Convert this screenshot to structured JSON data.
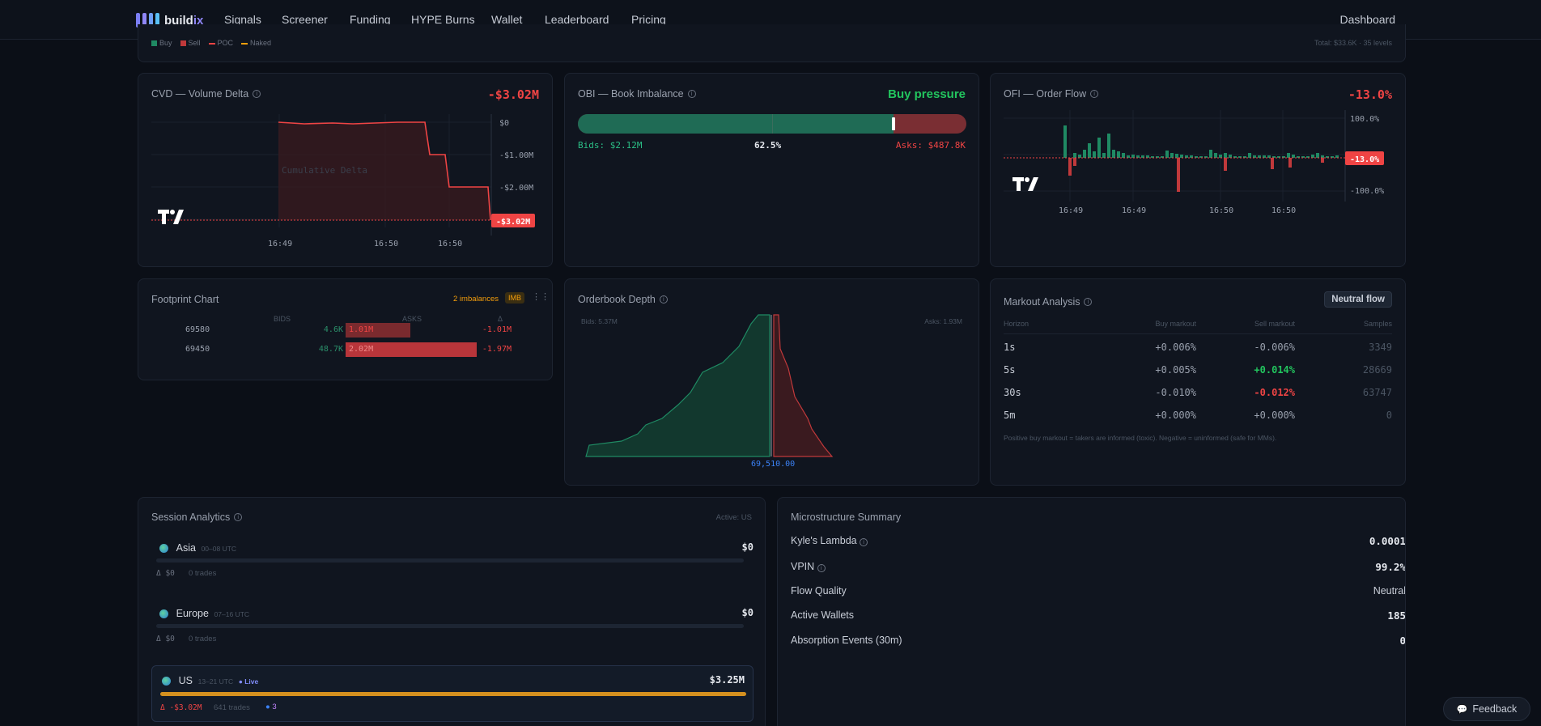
{
  "nav": {
    "logo_main": "build",
    "logo_accent": "ix",
    "items": [
      "Signals",
      "Screener",
      "Funding",
      "HYPE Burns",
      "Wallet",
      "Leaderboard",
      "Pricing"
    ],
    "dashboard": "Dashboard"
  },
  "top_strip": {
    "legend": [
      "Buy",
      "Sell",
      "POC",
      "Naked"
    ],
    "legend_colors": [
      "#1f8a63",
      "#c0393b",
      "#ef4444",
      "#f59e0b"
    ],
    "total": "Total: $33.6K · 35 levels"
  },
  "cvd": {
    "title": "CVD — Volume Delta",
    "value": "-$3.02M",
    "y_ticks": [
      "$0",
      "-$1.00M",
      "-$2.00M"
    ],
    "current": "-$3.02M",
    "x_ticks": [
      "16:49",
      "16:50",
      "16:50"
    ],
    "watermark": "Cumulative Delta"
  },
  "obi": {
    "title": "OBI — Book Imbalance",
    "status": "Buy pressure",
    "bids": "Bids: $2.12M",
    "pct": "62.5%",
    "asks": "Asks: $487.8K",
    "fill_fraction": 0.813
  },
  "ofi": {
    "title": "OFI — Order Flow",
    "value": "-13.0%",
    "y_ticks": [
      "100.0%",
      "-100.0%"
    ],
    "current": "-13.0%",
    "x_ticks": [
      "16:49",
      "16:49",
      "16:50",
      "16:50"
    ]
  },
  "footprint": {
    "title": "Footprint Chart",
    "imbalances": "2 imbalances",
    "imb_badge": "IMB",
    "headers": [
      "BIDS",
      "ASKS",
      "Δ"
    ],
    "rows": [
      {
        "price": "69580",
        "bid": "4.6K",
        "ask": "1.01M",
        "delta": "-1.01M"
      },
      {
        "price": "69450",
        "bid": "48.7K",
        "ask": "2.02M",
        "delta": "-1.97M"
      }
    ]
  },
  "depth": {
    "title": "Orderbook Depth",
    "bids_label": "Bids: 5.37M",
    "asks_label": "Asks: 1.93M",
    "mid": "69,510.00"
  },
  "markout": {
    "title": "Markout Analysis",
    "badge": "Neutral flow",
    "headers": [
      "Horizon",
      "Buy markout",
      "Sell markout",
      "Samples"
    ],
    "rows": [
      {
        "h": "1s",
        "buy": "+0.006%",
        "sell": "-0.006%",
        "n": "3349"
      },
      {
        "h": "5s",
        "buy": "+0.005%",
        "sell": "+0.014%",
        "n": "28669"
      },
      {
        "h": "30s",
        "buy": "-0.010%",
        "sell": "-0.012%",
        "n": "63747"
      },
      {
        "h": "5m",
        "buy": "+0.000%",
        "sell": "+0.000%",
        "n": "0"
      }
    ],
    "note": "Positive buy markout = takers are informed (toxic). Negative = uninformed (safe for MMs)."
  },
  "session": {
    "title": "Session Analytics",
    "active": "Active: US",
    "sessions": [
      {
        "name": "Asia",
        "hours": "00–08 UTC",
        "value": "$0",
        "delta": "Δ $0",
        "trades": "0 trades"
      },
      {
        "name": "Europe",
        "hours": "07–16 UTC",
        "value": "$0",
        "delta": "Δ $0",
        "trades": "0 trades"
      },
      {
        "name": "US",
        "hours": "13–21 UTC",
        "live": "● Live",
        "value": "$3.25M",
        "delta": "Δ -$3.02M",
        "trades": "641 trades",
        "whales": "3",
        "fill": 1.0
      }
    ]
  },
  "micro": {
    "title": "Microstructure Summary",
    "rows": [
      {
        "label": "Kyle's Lambda",
        "value": "0.0001"
      },
      {
        "label": "VPIN",
        "value": "99.2%"
      },
      {
        "label": "Flow Quality",
        "value": "Neutral"
      },
      {
        "label": "Active Wallets",
        "value": "185"
      },
      {
        "label": "Absorption Events (30m)",
        "value": "0"
      }
    ]
  },
  "feedback": "Feedback"
}
